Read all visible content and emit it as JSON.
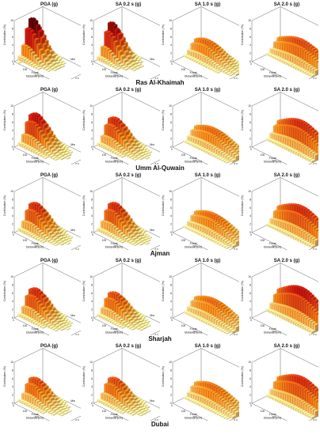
{
  "labels": {
    "z_axis": "Contribution (%)",
    "x_axis_line1": "Focal",
    "x_axis_line2": "Distance (km)",
    "y_axis": "Mw",
    "x_ticks": [
      "0",
      "100",
      "200",
      "300",
      "400"
    ],
    "y_ticks": [
      "4.0",
      "5.0",
      "6.0",
      "7.0",
      "8.0"
    ],
    "z_ticks": [
      "0",
      "2",
      "4",
      "6",
      "8",
      "10"
    ]
  },
  "colors": {
    "low": "#fff3a8",
    "mid": "#ff8c1a",
    "high": "#d01a10",
    "peak": "#5a0008",
    "frame": "#222222"
  },
  "chart_data": [
    {
      "city": "Ras Al-Khaimah",
      "type": "bar3d",
      "zlim": [
        0,
        10
      ],
      "panels": [
        {
          "title": "PGA (g)",
          "peak": {
            "distance_km": 20,
            "magnitude": 6.0,
            "contribution_pct": 9
          }
        },
        {
          "title": "SA 0.2 s (g)",
          "peak": {
            "distance_km": 20,
            "magnitude": 6.0,
            "contribution_pct": 8
          }
        },
        {
          "title": "SA 1.0 s (g)",
          "peak": {
            "distance_km": 100,
            "magnitude": 7.0,
            "contribution_pct": 4
          }
        },
        {
          "title": "SA 2.0 s (g)",
          "peak": {
            "distance_km": 200,
            "magnitude": 7.5,
            "contribution_pct": 5
          }
        }
      ]
    },
    {
      "city": "Umm Al-Quwain",
      "type": "bar3d",
      "zlim": [
        0,
        10
      ],
      "panels": [
        {
          "title": "PGA (g)",
          "peak": {
            "distance_km": 50,
            "magnitude": 6.0,
            "contribution_pct": 7
          }
        },
        {
          "title": "SA 0.2 s (g)",
          "peak": {
            "distance_km": 50,
            "magnitude": 6.0,
            "contribution_pct": 6
          }
        },
        {
          "title": "SA 1.0 s (g)",
          "peak": {
            "distance_km": 150,
            "magnitude": 7.0,
            "contribution_pct": 4
          }
        },
        {
          "title": "SA 2.0 s (g)",
          "peak": {
            "distance_km": 200,
            "magnitude": 7.5,
            "contribution_pct": 6
          }
        }
      ]
    },
    {
      "city": "Ajman",
      "type": "bar3d",
      "zlim": [
        0,
        10
      ],
      "panels": [
        {
          "title": "PGA (g)",
          "peak": {
            "distance_km": 50,
            "magnitude": 6.0,
            "contribution_pct": 6
          }
        },
        {
          "title": "SA 0.2 s (g)",
          "peak": {
            "distance_km": 50,
            "magnitude": 6.0,
            "contribution_pct": 6
          }
        },
        {
          "title": "SA 1.0 s (g)",
          "peak": {
            "distance_km": 150,
            "magnitude": 7.0,
            "contribution_pct": 4
          }
        },
        {
          "title": "SA 2.0 s (g)",
          "peak": {
            "distance_km": 200,
            "magnitude": 7.5,
            "contribution_pct": 6
          }
        }
      ]
    },
    {
      "city": "Sharjah",
      "type": "bar3d",
      "zlim": [
        0,
        10
      ],
      "panels": [
        {
          "title": "PGA (g)",
          "peak": {
            "distance_km": 50,
            "magnitude": 6.0,
            "contribution_pct": 6
          }
        },
        {
          "title": "SA 0.2 s (g)",
          "peak": {
            "distance_km": 50,
            "magnitude": 6.0,
            "contribution_pct": 5
          }
        },
        {
          "title": "SA 1.0 s (g)",
          "peak": {
            "distance_km": 150,
            "magnitude": 7.0,
            "contribution_pct": 4
          }
        },
        {
          "title": "SA 2.0 s (g)",
          "peak": {
            "distance_km": 200,
            "magnitude": 7.5,
            "contribution_pct": 7
          }
        }
      ]
    },
    {
      "city": "Dubai",
      "type": "bar3d",
      "zlim": [
        0,
        10
      ],
      "panels": [
        {
          "title": "PGA (g)",
          "peak": {
            "distance_km": 50,
            "magnitude": 6.0,
            "contribution_pct": 5
          }
        },
        {
          "title": "SA 0.2 s (g)",
          "peak": {
            "distance_km": 50,
            "magnitude": 6.0,
            "contribution_pct": 5
          }
        },
        {
          "title": "SA 1.0 s (g)",
          "peak": {
            "distance_km": 150,
            "magnitude": 7.0,
            "contribution_pct": 4
          }
        },
        {
          "title": "SA 2.0 s (g)",
          "peak": {
            "distance_km": 200,
            "magnitude": 7.5,
            "contribution_pct": 6
          }
        }
      ]
    }
  ]
}
